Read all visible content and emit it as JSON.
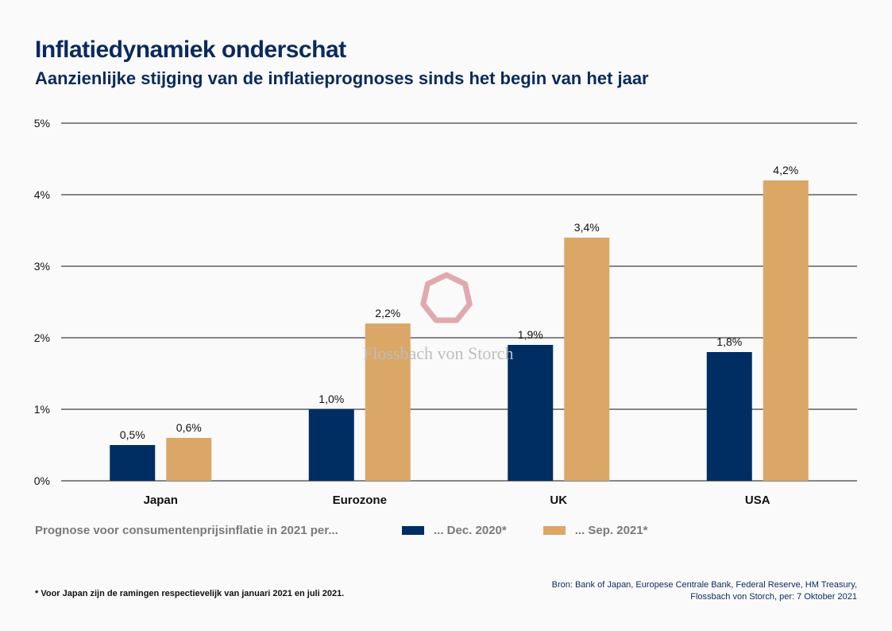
{
  "header": {
    "title": "Inflatiedynamiek onderschat",
    "subtitle": "Aanzienlijke stijging van de inflatieprognoses sinds het begin van het jaar"
  },
  "chart_data": {
    "type": "bar",
    "categories": [
      "Japan",
      "Eurozone",
      "UK",
      "USA"
    ],
    "series": [
      {
        "name": "... Dec. 2020*",
        "color": "#002d62",
        "values": [
          0.5,
          1.0,
          1.9,
          1.8
        ],
        "labels": [
          "0,5%",
          "1,0%",
          "1,9%",
          "1,8%"
        ]
      },
      {
        "name": "... Sep. 2021*",
        "color": "#dba766",
        "values": [
          0.6,
          2.2,
          3.4,
          4.2
        ],
        "labels": [
          "0,6%",
          "2,2%",
          "3,4%",
          "4,2%"
        ]
      }
    ],
    "ylim": [
      0,
      5
    ],
    "yticks": [
      0,
      1,
      2,
      3,
      4,
      5
    ],
    "ytick_labels": [
      "0%",
      "1%",
      "2%",
      "3%",
      "4%",
      "5%"
    ],
    "grid": true
  },
  "legend": {
    "intro": "Prognose voor consumentenprijsinflatie in 2021 per..."
  },
  "watermark": {
    "text": "Flossbach von Storch",
    "color": "#e0a9ae"
  },
  "footer": {
    "footnote": "* Voor Japan zijn de ramingen respectievelijk van januari 2021 en juli 2021.",
    "source_line1": "Bron: Bank of Japan, Europese Centrale Bank, Federal Reserve, HM Treasury,",
    "source_line2": "Flossbach von Storch, per: 7 Oktober 2021"
  }
}
